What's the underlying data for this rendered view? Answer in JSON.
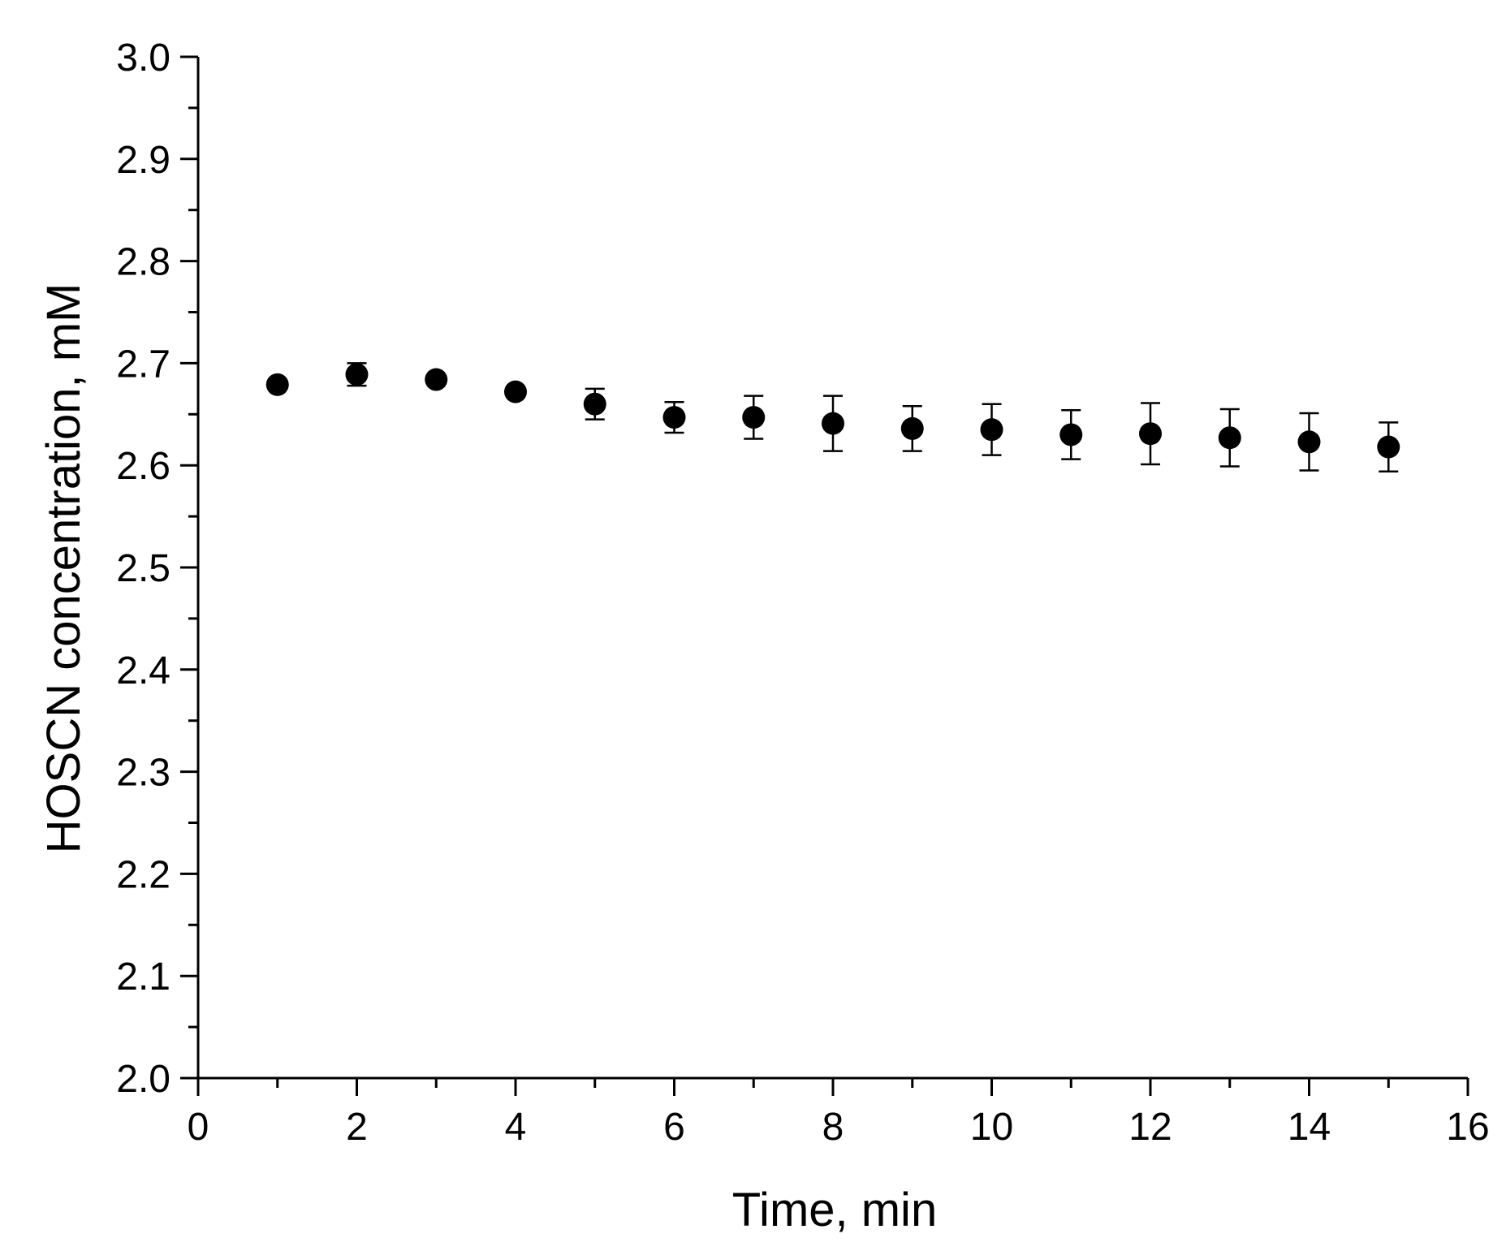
{
  "chart_data": {
    "type": "scatter",
    "title": "",
    "xlabel": "Time, min",
    "ylabel": "HOSCN concentration, mM",
    "xlim": [
      0,
      16
    ],
    "ylim": [
      2.0,
      3.0
    ],
    "x_ticks": [
      "0",
      "2",
      "4",
      "6",
      "8",
      "10",
      "12",
      "14",
      "16"
    ],
    "y_ticks": [
      "2.0",
      "2.1",
      "2.2",
      "2.3",
      "2.4",
      "2.5",
      "2.6",
      "2.7",
      "2.8",
      "2.9",
      "3.0"
    ],
    "grid": false,
    "legend": "none",
    "marker": "filled-circle",
    "color": "#000000",
    "series": [
      {
        "x": [
          1,
          2,
          3,
          4,
          5,
          6,
          7,
          8,
          9,
          10,
          11,
          12,
          13,
          14,
          15
        ],
        "y": [
          2.679,
          2.689,
          2.684,
          2.672,
          2.66,
          2.647,
          2.647,
          2.641,
          2.636,
          2.635,
          2.63,
          2.631,
          2.627,
          2.623,
          2.618
        ],
        "error": [
          0.003,
          0.011,
          0.003,
          0.004,
          0.015,
          0.015,
          0.021,
          0.027,
          0.022,
          0.025,
          0.024,
          0.03,
          0.028,
          0.028,
          0.024
        ]
      }
    ]
  }
}
